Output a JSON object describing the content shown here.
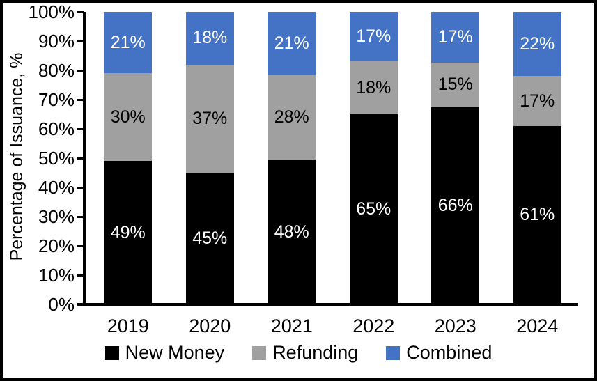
{
  "chart_data": {
    "type": "bar",
    "stacked": true,
    "normalized_to_100": true,
    "title": "",
    "xlabel": "",
    "ylabel": "Percentage of Issuance, %",
    "ylim": [
      0,
      100
    ],
    "y_tick_step": 10,
    "y_tick_labels": [
      "0%",
      "10%",
      "20%",
      "30%",
      "40%",
      "50%",
      "60%",
      "70%",
      "80%",
      "90%",
      "100%"
    ],
    "categories": [
      "2019",
      "2020",
      "2021",
      "2022",
      "2023",
      "2024"
    ],
    "series": [
      {
        "name": "New Money",
        "color": "#000000",
        "label_color": "#FFFFFF",
        "values": [
          49,
          45,
          48,
          65,
          66,
          61
        ],
        "data_labels": [
          "49%",
          "45%",
          "48%",
          "65%",
          "66%",
          "61%"
        ]
      },
      {
        "name": "Refunding",
        "color": "#A0A0A0",
        "label_color": "#000000",
        "values": [
          30,
          37,
          28,
          18,
          15,
          17
        ],
        "data_labels": [
          "30%",
          "37%",
          "28%",
          "18%",
          "15%",
          "17%"
        ]
      },
      {
        "name": "Combined",
        "color": "#4472C4",
        "label_color": "#FFFFFF",
        "values": [
          21,
          18,
          21,
          17,
          17,
          22
        ],
        "data_labels": [
          "21%",
          "18%",
          "21%",
          "17%",
          "17%",
          "22%"
        ]
      }
    ],
    "legend_position": "bottom",
    "grid": false,
    "axis_color": "#000000",
    "background_color": "#FFFFFF"
  }
}
